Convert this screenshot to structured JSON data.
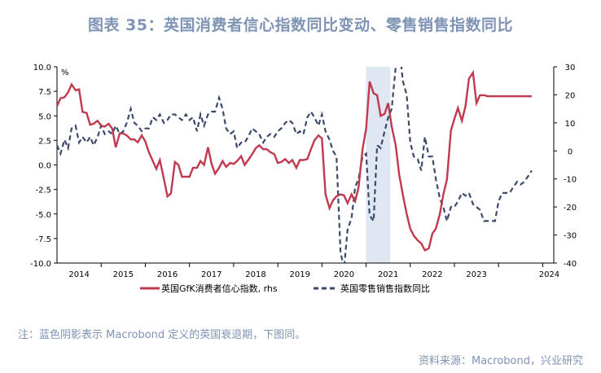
{
  "title": "图表 35：英国消费者信心指数同比变动、零售销售指数同比",
  "note": "注：蓝色阴影表示 Macrobond 定义的英国衰退期，下图同。",
  "source": "资料来源：Macrobond，兴业研究",
  "colors": {
    "line1": "#c0394f",
    "line2": "#3b4a6b",
    "recession": "#dfe7f2",
    "text": "#7f93b4"
  },
  "chart_data": {
    "type": "line",
    "left_axis": {
      "unit": "%",
      "range": [
        -10,
        10
      ],
      "ticks": [
        "10.0",
        "7.5",
        "5.0",
        "2.5",
        "0.0",
        "-2.5",
        "-5.0",
        "-7.5",
        "-10.0"
      ]
    },
    "right_axis": {
      "range": [
        -40,
        30
      ],
      "ticks": [
        "30",
        "20",
        "10",
        "0",
        "-10",
        "-20",
        "-30",
        "-40"
      ]
    },
    "x_ticks": [
      "2014",
      "2015",
      "2016",
      "2017",
      "2018",
      "2019",
      "2020",
      "2021",
      "2022",
      "2023",
      "2024"
    ],
    "recession": {
      "start": 2020.0,
      "end": 2020.55
    },
    "legend_position": "bottom",
    "series": [
      {
        "name": "英国GfK消费者信心指数, rhs",
        "axis": "left",
        "x": [
          2013.0,
          2013.08,
          2013.17,
          2013.25,
          2013.33,
          2013.42,
          2013.5,
          2013.58,
          2013.67,
          2013.75,
          2013.83,
          2013.92,
          2014.0,
          2014.08,
          2014.17,
          2014.25,
          2014.33,
          2014.42,
          2014.5,
          2014.58,
          2014.67,
          2014.75,
          2014.83,
          2014.92,
          2015.0,
          2015.08,
          2015.17,
          2015.25,
          2015.33,
          2015.42,
          2015.5,
          2015.58,
          2015.67,
          2015.75,
          2015.83,
          2015.92,
          2016.0,
          2016.08,
          2016.17,
          2016.25,
          2016.33,
          2016.42,
          2016.5,
          2016.58,
          2016.67,
          2016.75,
          2016.83,
          2016.92,
          2017.0,
          2017.08,
          2017.17,
          2017.25,
          2017.33,
          2017.42,
          2017.5,
          2017.58,
          2017.67,
          2017.75,
          2017.83,
          2017.92,
          2018.0,
          2018.08,
          2018.17,
          2018.25,
          2018.33,
          2018.42,
          2018.5,
          2018.58,
          2018.67,
          2018.75,
          2018.83,
          2018.92,
          2019.0,
          2019.08,
          2019.17,
          2019.25,
          2019.33,
          2019.42,
          2019.5,
          2019.58,
          2019.67,
          2019.75,
          2019.83,
          2019.92,
          2020.0,
          2020.08,
          2020.17,
          2020.25,
          2020.33,
          2020.42,
          2020.5,
          2020.58,
          2020.67,
          2020.75,
          2020.83,
          2020.92,
          2021.0,
          2021.08,
          2021.17,
          2021.25,
          2021.33,
          2021.42,
          2021.5,
          2021.58,
          2021.67,
          2021.75,
          2021.83,
          2021.92,
          2022.0,
          2022.08,
          2022.17,
          2022.25,
          2022.33,
          2022.42,
          2022.5,
          2022.58,
          2022.67,
          2022.75,
          2022.83,
          2022.92,
          2023.0,
          2023.08,
          2023.17,
          2023.25,
          2023.33,
          2023.42,
          2023.5,
          2023.58,
          2023.67,
          2023.75
        ],
        "values": [
          6.0,
          6.8,
          6.9,
          7.4,
          8.2,
          7.6,
          7.7,
          5.4,
          5.3,
          4.1,
          4.2,
          4.5,
          4.0,
          3.9,
          4.2,
          3.7,
          1.8,
          3.2,
          3.2,
          3.0,
          2.6,
          2.6,
          2.3,
          3.0,
          2.4,
          1.3,
          0.4,
          -0.4,
          0.5,
          -1.4,
          -3.2,
          -2.9,
          0.3,
          0.0,
          -1.2,
          -1.2,
          -1.2,
          -0.3,
          -0.3,
          0.4,
          0.0,
          1.8,
          0.1,
          -0.9,
          -0.3,
          0.4,
          -0.2,
          0.2,
          0.1,
          0.4,
          0.9,
          0.0,
          0.5,
          1.1,
          1.7,
          2.0,
          1.6,
          1.6,
          1.3,
          1.1,
          0.2,
          0.3,
          0.6,
          0.2,
          0.5,
          -0.3,
          0.5,
          0.5,
          0.6,
          1.6,
          2.5,
          3.0,
          2.7,
          -3.0,
          -4.4,
          -3.6,
          -3.2,
          -3.0,
          -3.1,
          -3.9,
          -3.0,
          -3.7,
          -2.3,
          1.6,
          3.7,
          8.5,
          7.3,
          7.1,
          5.0,
          5.2,
          6.3,
          3.9,
          2.0,
          -1.0,
          -3.0,
          -5.0,
          -6.5,
          -7.2,
          -7.7,
          -8.0,
          -8.7,
          -8.5,
          -7.0,
          -6.5,
          -5.0,
          -3.0,
          -1.5,
          3.5,
          4.7,
          5.8,
          4.5,
          6.0,
          8.8,
          9.4,
          6.3,
          7.1,
          7.1,
          7.0,
          7.0,
          7.0,
          7.0,
          7.0,
          7.0,
          7.0,
          7.0,
          7.0,
          7.0,
          7.0,
          7.0,
          7.0
        ]
      },
      {
        "name": "英国零售销售指数同比",
        "axis": "right",
        "x": [
          2013.0,
          2013.08,
          2013.17,
          2013.25,
          2013.33,
          2013.42,
          2013.5,
          2013.58,
          2013.67,
          2013.75,
          2013.83,
          2013.92,
          2014.0,
          2014.08,
          2014.17,
          2014.25,
          2014.33,
          2014.42,
          2014.5,
          2014.58,
          2014.67,
          2014.75,
          2014.83,
          2014.92,
          2015.0,
          2015.08,
          2015.17,
          2015.25,
          2015.33,
          2015.42,
          2015.5,
          2015.58,
          2015.67,
          2015.75,
          2015.83,
          2015.92,
          2016.0,
          2016.08,
          2016.17,
          2016.25,
          2016.33,
          2016.42,
          2016.5,
          2016.58,
          2016.67,
          2016.75,
          2016.83,
          2016.92,
          2017.0,
          2017.08,
          2017.17,
          2017.25,
          2017.33,
          2017.42,
          2017.5,
          2017.58,
          2017.67,
          2017.75,
          2017.83,
          2017.92,
          2018.0,
          2018.08,
          2018.17,
          2018.25,
          2018.33,
          2018.42,
          2018.5,
          2018.58,
          2018.67,
          2018.75,
          2018.83,
          2018.92,
          2019.0,
          2019.08,
          2019.17,
          2019.25,
          2019.33,
          2019.42,
          2019.5,
          2019.58,
          2019.67,
          2019.75,
          2019.83,
          2019.92,
          2020.0,
          2020.08,
          2020.17,
          2020.25,
          2020.33,
          2020.42,
          2020.5,
          2020.58,
          2020.67,
          2020.75,
          2020.83,
          2020.92,
          2021.0,
          2021.08,
          2021.17,
          2021.25,
          2021.33,
          2021.42,
          2021.5,
          2021.58,
          2021.67,
          2021.75,
          2021.83,
          2021.92,
          2022.0,
          2022.08,
          2022.17,
          2022.25,
          2022.33,
          2022.42,
          2022.5,
          2022.58,
          2022.67,
          2022.75,
          2022.83,
          2022.92,
          2023.0,
          2023.08,
          2023.17,
          2023.25,
          2023.33,
          2023.42,
          2023.5,
          2023.58,
          2023.67,
          2023.75
        ],
        "values": [
          2,
          -1,
          4,
          1,
          8,
          9,
          3,
          5,
          3,
          5,
          2,
          5,
          9,
          6,
          7,
          6,
          9,
          6,
          7,
          10,
          15,
          10,
          9,
          7,
          8,
          8,
          12,
          11,
          13,
          10,
          11,
          13,
          13,
          12,
          11,
          13,
          11,
          12,
          7,
          13,
          9,
          13,
          14,
          14,
          19,
          15,
          8,
          6,
          7,
          1,
          3,
          3,
          5,
          8,
          7,
          6,
          3,
          5,
          6,
          5,
          7,
          8,
          10,
          11,
          10,
          6,
          7,
          6,
          12,
          14,
          12,
          9,
          13,
          7,
          4,
          0,
          -2,
          -36,
          -42,
          -28,
          -24,
          -13,
          -10,
          -2,
          -1,
          -23,
          -25,
          2,
          1,
          7,
          12,
          15,
          30,
          38,
          25,
          20,
          3,
          -2,
          -3,
          -7,
          5,
          -2,
          -2,
          -10,
          -17,
          -20,
          -25,
          -20,
          -20,
          -18,
          -15,
          -16,
          -15,
          -19,
          -20,
          -21,
          -25,
          -25,
          -25,
          -25,
          -18,
          -15,
          -15,
          -15,
          -13,
          -11,
          -12,
          -11,
          -9,
          -7
        ]
      }
    ]
  }
}
